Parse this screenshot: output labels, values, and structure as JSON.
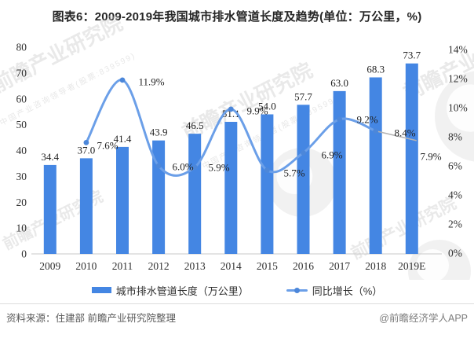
{
  "title": "图表6：2009-2019年我国城市排水管道长度及趋势(单位：万公里，%)",
  "chart_data": {
    "type": "bar+line",
    "categories": [
      "2009",
      "2010",
      "2011",
      "2012",
      "2013",
      "2014",
      "2015",
      "2016",
      "2017",
      "2018",
      "2019E"
    ],
    "series": [
      {
        "name": "城市排水管道长度（万公里）",
        "type": "bar",
        "values": [
          34.4,
          37.0,
          41.4,
          43.9,
          46.5,
          51.1,
          54.0,
          57.7,
          63.0,
          68.3,
          73.7
        ],
        "value_labels": [
          "34.4",
          "37.0",
          "41.4",
          "43.9",
          "46.5",
          "51.1",
          "54.0",
          "57.7",
          "63.0",
          "68.3",
          "73.7"
        ]
      },
      {
        "name": "同比增长（%）",
        "type": "line",
        "values": [
          null,
          7.6,
          11.9,
          6.0,
          5.9,
          9.9,
          5.7,
          6.9,
          9.2,
          8.4,
          7.9
        ],
        "value_labels": [
          "",
          "7.6%",
          "11.9%",
          "6.0%",
          "5.9%",
          "9.9%",
          "5.7%",
          "6.9%",
          "9.2%",
          "8.4%",
          "7.9%"
        ],
        "forecast_last_segment": true
      }
    ],
    "left_axis": {
      "ticks": [
        "80",
        "70",
        "60",
        "50",
        "40",
        "30",
        "20",
        "10",
        "0"
      ],
      "min": 0,
      "max": 80
    },
    "right_axis": {
      "ticks": [
        "14%",
        "12%",
        "10%",
        "8%",
        "6%",
        "4%",
        "2%",
        "0%"
      ],
      "min": 0,
      "max": 14
    },
    "grid": "off",
    "legend_position": "bottom",
    "layout_hints": {
      "line_label_centers": [
        null,
        [
          137,
          185
        ],
        [
          193,
          104
        ],
        [
          233,
          212
        ],
        [
          279,
          213
        ],
        [
          328,
          141
        ],
        [
          375,
          220
        ],
        [
          423,
          197
        ],
        [
          468,
          152
        ],
        [
          516,
          169
        ],
        [
          549,
          199
        ]
      ]
    }
  },
  "legend": {
    "bar_label": "城市排水管道长度（万公里）",
    "line_label": "同比增长（%）"
  },
  "footer": {
    "source": "资料来源：住建部 前瞻产业研究院整理",
    "credit": "@前瞻经济学人APP"
  },
  "watermark": {
    "brand": "前瞻产业研究院",
    "sub": "中国产业咨询领导者(股票:839599)"
  },
  "colors": {
    "bar": "#4486e3",
    "line": "#6b9fe8",
    "marker": "#4c87da",
    "forecast": "#b3b3b3",
    "axis_text": "#303030",
    "label_text": "#1f1f1f",
    "baseline": "#c9c9c9",
    "watermark": "#c9c9c9"
  }
}
